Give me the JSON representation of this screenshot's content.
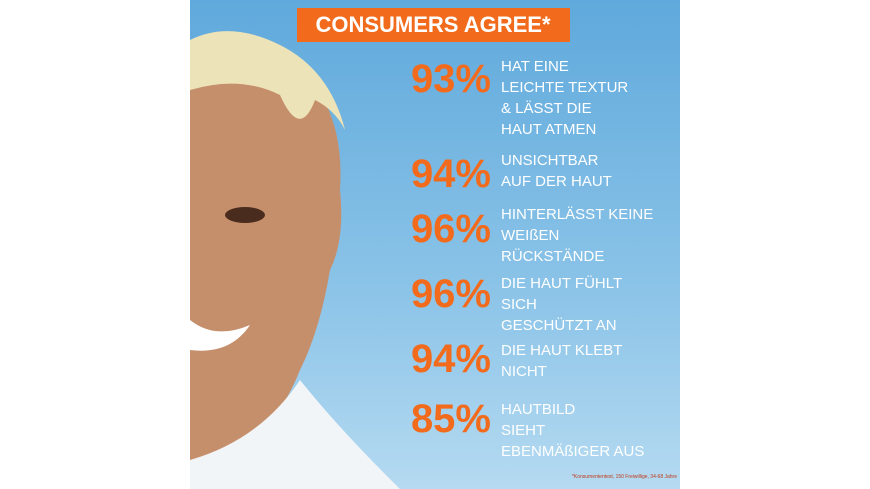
{
  "header": {
    "title": "CONSUMERS AGREE*"
  },
  "stats": [
    {
      "percent": "93%",
      "lines": [
        "HAT EINE",
        "LEICHTE TEXTUR",
        "& LÄSST DIE",
        "HAUT ATMEN"
      ]
    },
    {
      "percent": "94%",
      "lines": [
        "UNSICHTBAR",
        "AUF DER HAUT"
      ]
    },
    {
      "percent": "96%",
      "lines": [
        "HINTERLÄSST KEINE",
        "WEIßEN",
        "RÜCKSTÄNDE"
      ]
    },
    {
      "percent": "96%",
      "lines": [
        "DIE HAUT FÜHLT",
        "SICH",
        "GESCHÜTZT AN"
      ]
    },
    {
      "percent": "94%",
      "lines": [
        "DIE HAUT KLEBT",
        "NICHT"
      ]
    },
    {
      "percent": "85%",
      "lines": [
        "HAUTBILD",
        "SIEHT",
        "EBENMÄßIGER AUS"
      ]
    }
  ],
  "footnote": "*Konsumententest, 150 Freiwillige, 34-68 Jahre"
}
